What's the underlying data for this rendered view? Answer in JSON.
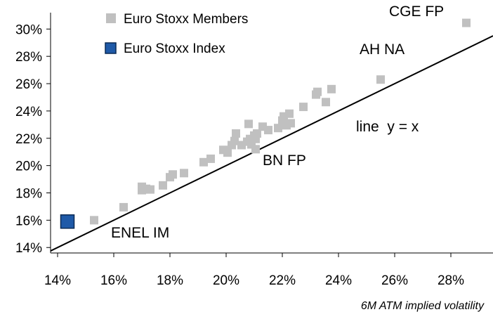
{
  "chart_data": {
    "type": "scatter",
    "xlabel": "6M ATM implied volatility",
    "ylabel": "",
    "xlim": [
      13.75,
      29.5
    ],
    "ylim": [
      13.6,
      31.2
    ],
    "x_ticks": [
      14,
      16,
      18,
      20,
      22,
      24,
      26,
      28
    ],
    "y_ticks": [
      14,
      16,
      18,
      20,
      22,
      24,
      26,
      28,
      30
    ],
    "x_tick_labels": [
      "14%",
      "16%",
      "18%",
      "20%",
      "22%",
      "24%",
      "26%",
      "28%"
    ],
    "y_tick_labels": [
      "14%",
      "16%",
      "18%",
      "20%",
      "22%",
      "24%",
      "26%",
      "28%",
      "30%"
    ],
    "grid": false,
    "legend_position": "top-left",
    "series": [
      {
        "name": "Euro Stoxx Members",
        "color": "#c0c0c0",
        "points": [
          [
            15.3,
            16.0
          ],
          [
            16.35,
            16.95
          ],
          [
            17.0,
            18.2
          ],
          [
            17.0,
            18.45
          ],
          [
            17.15,
            18.3
          ],
          [
            17.3,
            18.25
          ],
          [
            17.75,
            18.55
          ],
          [
            18.0,
            19.15
          ],
          [
            18.1,
            19.35
          ],
          [
            18.5,
            19.45
          ],
          [
            19.2,
            20.25
          ],
          [
            19.45,
            20.5
          ],
          [
            19.9,
            21.15
          ],
          [
            20.05,
            20.95
          ],
          [
            20.2,
            21.5
          ],
          [
            20.3,
            21.8
          ],
          [
            20.35,
            22.35
          ],
          [
            20.55,
            21.5
          ],
          [
            20.75,
            21.75
          ],
          [
            20.8,
            23.05
          ],
          [
            20.85,
            21.95
          ],
          [
            20.9,
            21.55
          ],
          [
            21.0,
            22.2
          ],
          [
            21.05,
            21.95
          ],
          [
            21.05,
            21.2
          ],
          [
            21.1,
            22.35
          ],
          [
            21.3,
            22.85
          ],
          [
            21.5,
            22.6
          ],
          [
            21.85,
            22.75
          ],
          [
            22.0,
            23.3
          ],
          [
            22.05,
            23.6
          ],
          [
            22.15,
            22.95
          ],
          [
            22.25,
            23.8
          ],
          [
            22.3,
            23.1
          ],
          [
            22.75,
            24.3
          ],
          [
            23.2,
            25.2
          ],
          [
            23.25,
            25.4
          ],
          [
            23.55,
            24.65
          ],
          [
            23.75,
            25.6
          ],
          [
            25.5,
            26.3
          ],
          [
            28.55,
            30.45
          ]
        ]
      },
      {
        "name": "Euro Stoxx Index",
        "color": "#1f5aa8",
        "points": [
          [
            14.35,
            15.9
          ]
        ]
      }
    ],
    "reference_line": {
      "label": "line  y = x",
      "from": 13.75,
      "to": 29.5
    },
    "annotations": [
      {
        "text": "CGE FP",
        "x": 28.55,
        "y": 30.45
      },
      {
        "text": "AH NA",
        "x": 25.5,
        "y": 26.3
      },
      {
        "text": "BN FP",
        "x": 21.05,
        "y": 21.2
      },
      {
        "text": "ENEL IM",
        "x": 15.3,
        "y": 16.0
      }
    ]
  }
}
